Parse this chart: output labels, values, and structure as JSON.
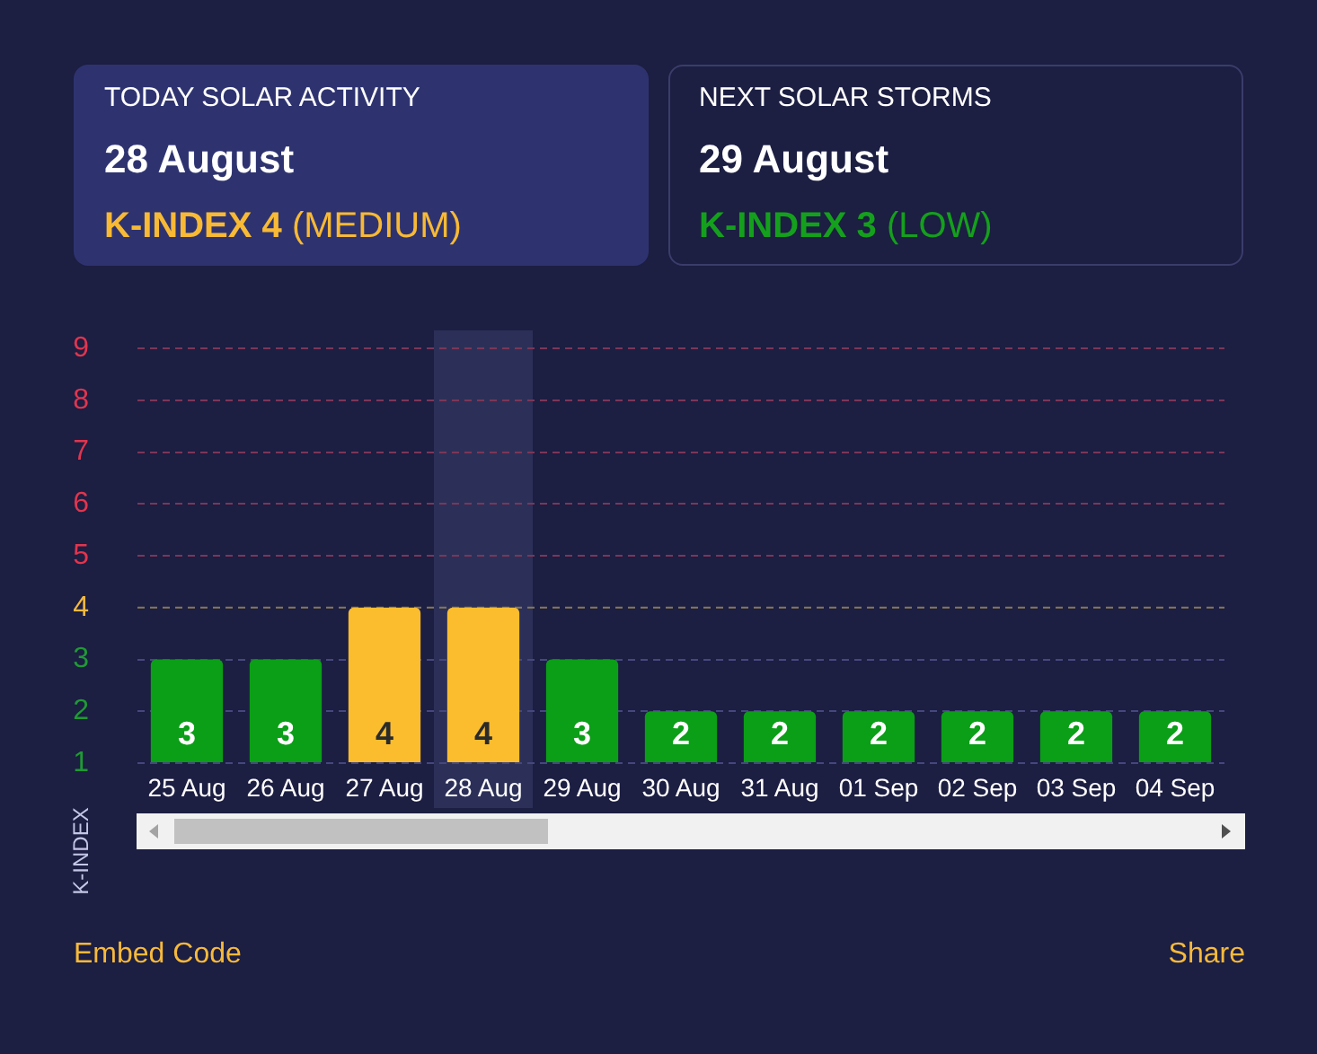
{
  "chart_data": [
    {
      "type": "other",
      "title": "TODAY SOLAR ACTIVITY",
      "annotations": [
        "28 August",
        "K-INDEX 4",
        "(MEDIUM)"
      ]
    },
    {
      "type": "other",
      "title": "NEXT SOLAR STORMS",
      "annotations": [
        "29 August",
        "K-INDEX 3",
        "(LOW)"
      ]
    },
    {
      "type": "bar",
      "ylabel": "K-INDEX",
      "categories": [
        "25 Aug",
        "26 Aug",
        "27 Aug",
        "28 Aug",
        "29 Aug",
        "30 Aug",
        "31 Aug",
        "01 Sep",
        "02 Sep",
        "03 Sep",
        "04 Sep"
      ],
      "values": [
        3,
        3,
        4,
        4,
        3,
        2,
        2,
        2,
        2,
        2,
        2
      ],
      "colors": [
        "#0b9e17",
        "#0b9e17",
        "#fbbd2e",
        "#fbbd2e",
        "#0b9e17",
        "#0b9e17",
        "#0b9e17",
        "#0b9e17",
        "#0b9e17",
        "#0b9e17",
        "#0b9e17"
      ],
      "ylim": [
        1,
        9
      ],
      "yticks": [
        1,
        2,
        3,
        4,
        5,
        6,
        7,
        8,
        9
      ],
      "grid": "y",
      "data_labels": true,
      "ref_lines": [
        {
          "axis": "y",
          "value": 4,
          "color": "#85795a",
          "line_style": "dashed"
        }
      ],
      "bands": [
        {
          "axis": "x",
          "from": "28 Aug",
          "to": "28 Aug",
          "color": "#2c3058"
        }
      ],
      "annotations": [
        "Embed Code",
        "Share"
      ]
    }
  ]
}
